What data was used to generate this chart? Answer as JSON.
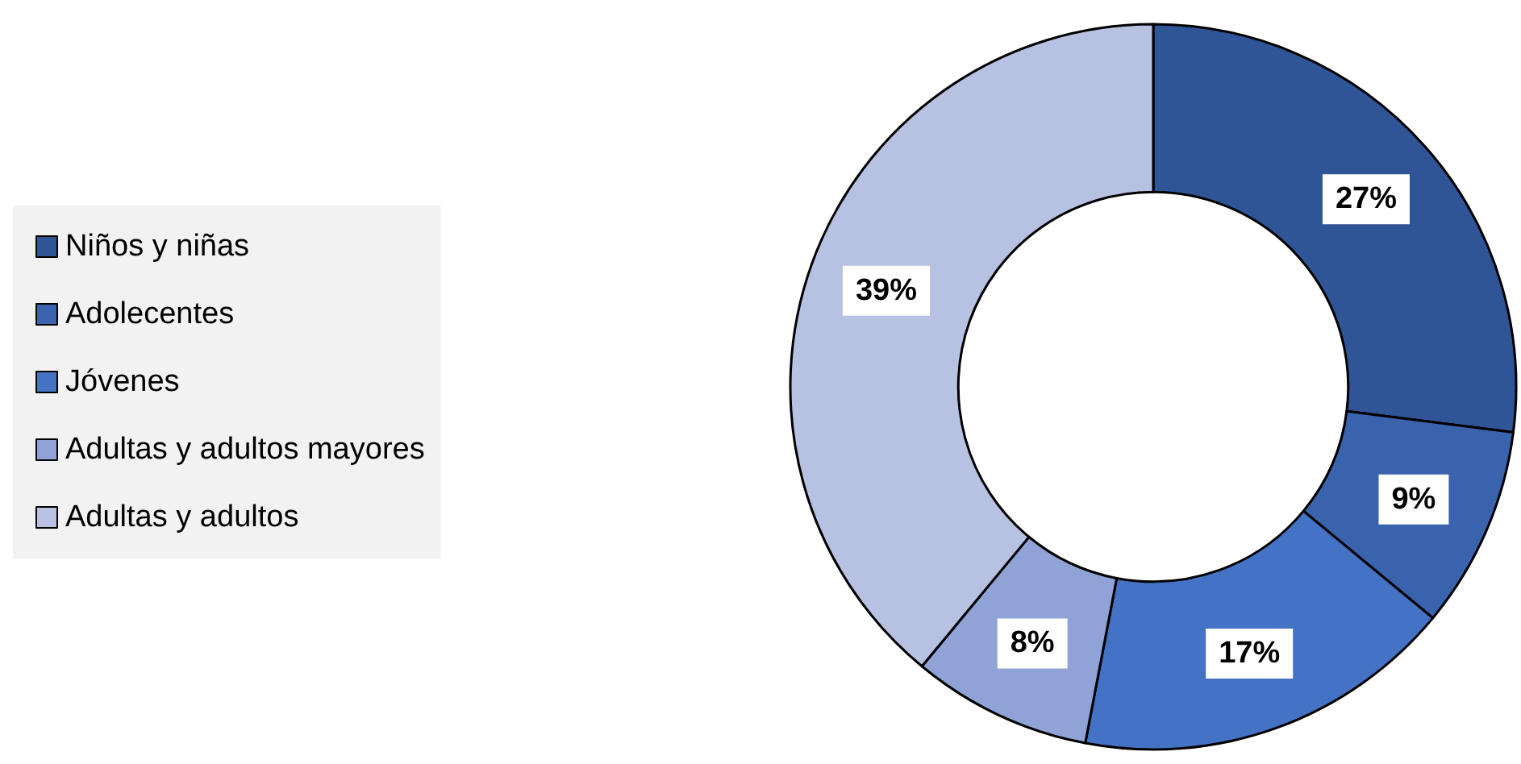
{
  "chart_data": {
    "type": "donut",
    "categories": [
      "Niños y niñas",
      "Adolecentes",
      "Jóvenes",
      "Adultas y adultos mayores",
      "Adultas y adultos"
    ],
    "values": [
      27,
      9,
      17,
      8,
      39
    ],
    "value_labels": [
      "27%",
      "9%",
      "17%",
      "8%",
      "39%"
    ],
    "colors": [
      "#2f5597",
      "#3a63ae",
      "#4472c4",
      "#8fa3d6",
      "#b7c1e2"
    ],
    "legend": "left"
  }
}
